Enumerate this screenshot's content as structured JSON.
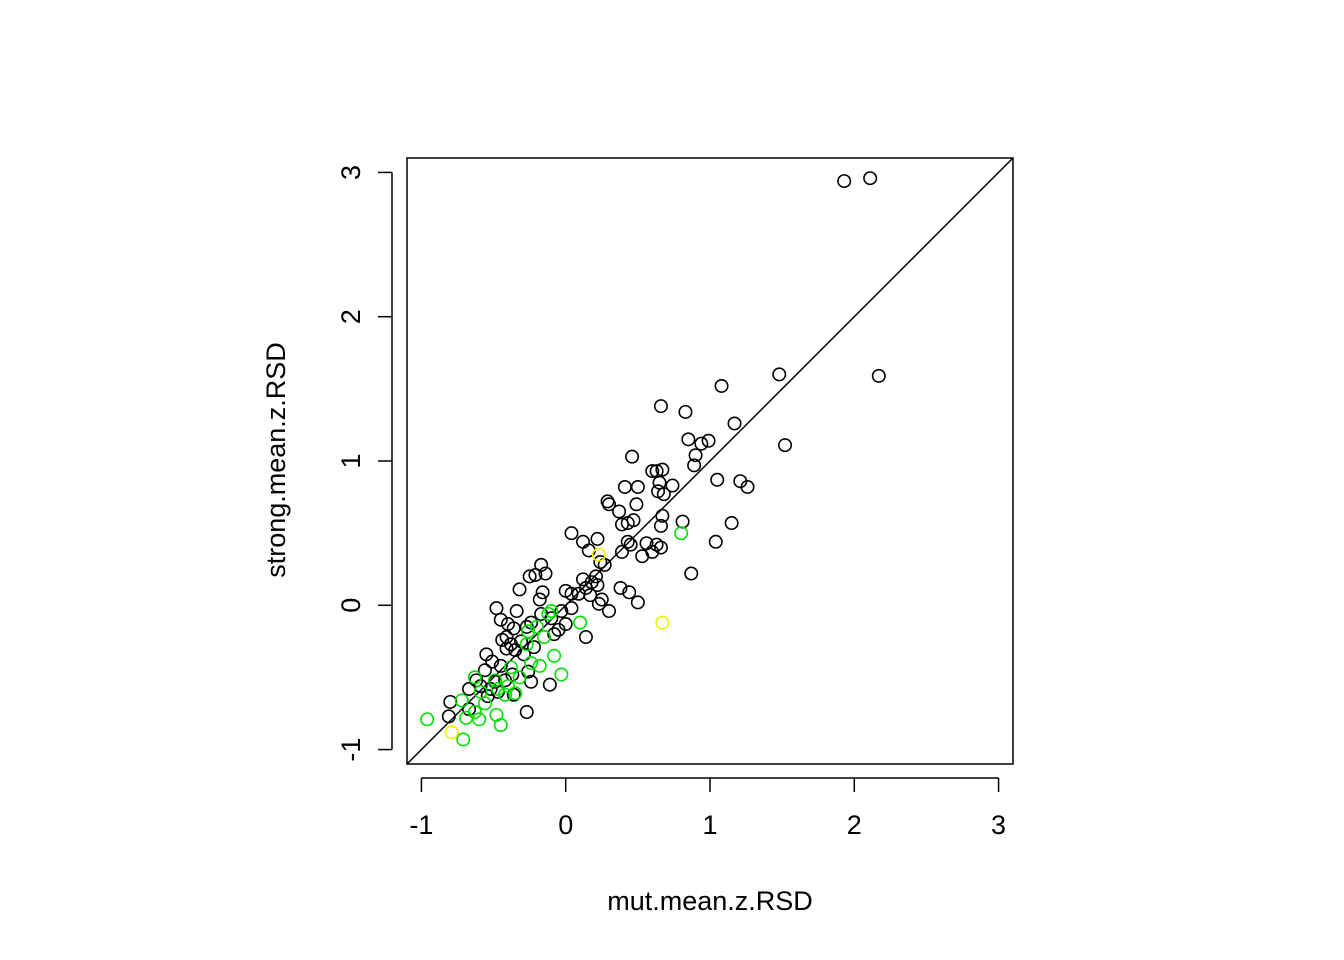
{
  "chart_data": {
    "type": "scatter",
    "xlabel": "mut.mean.z.RSD",
    "ylabel": "strong.mean.z.RSD",
    "xlim": [
      -1.1,
      3.1
    ],
    "ylim": [
      -1.1,
      3.1
    ],
    "x_ticks": [
      -1,
      0,
      1,
      2,
      3
    ],
    "y_ticks": [
      -1,
      0,
      1,
      2,
      3
    ],
    "x_tick_labels": [
      "-1",
      "0",
      "1",
      "2",
      "3"
    ],
    "y_tick_labels": [
      "-1",
      "0",
      "1",
      "2",
      "3"
    ],
    "reference_line": {
      "intercept": 0,
      "slope": 1,
      "color": "#000000"
    },
    "grid": false,
    "legend": "none",
    "series": [
      {
        "color": "#000000",
        "points": [
          [
            1.93,
            2.94
          ],
          [
            2.11,
            2.96
          ],
          [
            2.17,
            1.59
          ],
          [
            1.48,
            1.6
          ],
          [
            1.08,
            1.52
          ],
          [
            1.52,
            1.11
          ],
          [
            1.17,
            1.26
          ],
          [
            0.66,
            1.38
          ],
          [
            0.83,
            1.34
          ],
          [
            0.85,
            1.15
          ],
          [
            0.99,
            1.14
          ],
          [
            0.94,
            1.12
          ],
          [
            0.9,
            1.04
          ],
          [
            0.46,
            1.03
          ],
          [
            0.89,
            0.97
          ],
          [
            0.6,
            0.93
          ],
          [
            0.63,
            0.93
          ],
          [
            0.67,
            0.94
          ],
          [
            0.65,
            0.85
          ],
          [
            1.05,
            0.87
          ],
          [
            1.21,
            0.86
          ],
          [
            1.26,
            0.82
          ],
          [
            0.74,
            0.83
          ],
          [
            0.41,
            0.82
          ],
          [
            0.5,
            0.82
          ],
          [
            0.64,
            0.79
          ],
          [
            0.68,
            0.77
          ],
          [
            0.29,
            0.72
          ],
          [
            0.3,
            0.7
          ],
          [
            0.49,
            0.7
          ],
          [
            0.37,
            0.65
          ],
          [
            0.67,
            0.62
          ],
          [
            0.81,
            0.58
          ],
          [
            0.47,
            0.59
          ],
          [
            1.15,
            0.57
          ],
          [
            0.43,
            0.57
          ],
          [
            0.39,
            0.56
          ],
          [
            0.66,
            0.55
          ],
          [
            0.04,
            0.5
          ],
          [
            1.04,
            0.44
          ],
          [
            0.22,
            0.46
          ],
          [
            0.43,
            0.44
          ],
          [
            0.12,
            0.44
          ],
          [
            0.56,
            0.43
          ],
          [
            0.45,
            0.42
          ],
          [
            0.63,
            0.42
          ],
          [
            0.66,
            0.4
          ],
          [
            0.6,
            0.37
          ],
          [
            0.16,
            0.38
          ],
          [
            0.39,
            0.37
          ],
          [
            0.53,
            0.34
          ],
          [
            0.24,
            0.3
          ],
          [
            0.27,
            0.28
          ],
          [
            0.21,
            0.2
          ],
          [
            0.87,
            0.22
          ],
          [
            -0.17,
            0.28
          ],
          [
            -0.14,
            0.22
          ],
          [
            -0.21,
            0.21
          ],
          [
            -0.25,
            0.2
          ],
          [
            -0.32,
            0.11
          ],
          [
            0.22,
            0.14
          ],
          [
            0.12,
            0.18
          ],
          [
            0.18,
            0.16
          ],
          [
            0.14,
            0.12
          ],
          [
            0.38,
            0.12
          ],
          [
            0.44,
            0.09
          ],
          [
            0.0,
            0.1
          ],
          [
            0.04,
            0.08
          ],
          [
            0.09,
            0.08
          ],
          [
            -0.16,
            0.09
          ],
          [
            0.17,
            0.07
          ],
          [
            0.25,
            0.04
          ],
          [
            0.23,
            0.01
          ],
          [
            0.5,
            0.02
          ],
          [
            -0.18,
            0.04
          ],
          [
            0.3,
            -0.04
          ],
          [
            0.04,
            -0.02
          ],
          [
            -0.03,
            -0.04
          ],
          [
            -0.34,
            -0.04
          ],
          [
            -0.48,
            -0.02
          ],
          [
            -0.17,
            -0.06
          ],
          [
            -0.1,
            -0.09
          ],
          [
            -0.45,
            -0.1
          ],
          [
            -0.24,
            -0.12
          ],
          [
            0.0,
            -0.13
          ],
          [
            -0.4,
            -0.13
          ],
          [
            -0.27,
            -0.15
          ],
          [
            -0.36,
            -0.16
          ],
          [
            -0.05,
            -0.17
          ],
          [
            0.14,
            -0.22
          ],
          [
            -0.08,
            -0.2
          ],
          [
            -0.41,
            -0.22
          ],
          [
            -0.44,
            -0.24
          ],
          [
            -0.31,
            -0.25
          ],
          [
            -0.38,
            -0.27
          ],
          [
            -0.22,
            -0.29
          ],
          [
            -0.41,
            -0.3
          ],
          [
            -0.35,
            -0.31
          ],
          [
            -0.29,
            -0.34
          ],
          [
            -0.55,
            -0.34
          ],
          [
            -0.51,
            -0.39
          ],
          [
            -0.45,
            -0.42
          ],
          [
            -0.56,
            -0.45
          ],
          [
            -0.26,
            -0.46
          ],
          [
            -0.37,
            -0.48
          ],
          [
            -0.42,
            -0.52
          ],
          [
            -0.49,
            -0.53
          ],
          [
            -0.59,
            -0.56
          ],
          [
            -0.67,
            -0.58
          ],
          [
            -0.24,
            -0.53
          ],
          [
            -0.11,
            -0.55
          ],
          [
            -0.47,
            -0.6
          ],
          [
            -0.54,
            -0.63
          ],
          [
            -0.8,
            -0.67
          ],
          [
            -0.67,
            -0.72
          ],
          [
            -0.27,
            -0.74
          ],
          [
            -0.81,
            -0.77
          ],
          [
            -0.36,
            -0.62
          ],
          [
            -0.52,
            -0.58
          ],
          [
            -0.62,
            -0.52
          ]
        ]
      },
      {
        "color": "#00e000",
        "points": [
          [
            0.8,
            0.5
          ],
          [
            -0.1,
            -0.04
          ],
          [
            -0.12,
            -0.06
          ],
          [
            -0.2,
            -0.15
          ],
          [
            0.1,
            -0.12
          ],
          [
            -0.26,
            -0.18
          ],
          [
            -0.15,
            -0.22
          ],
          [
            -0.27,
            -0.27
          ],
          [
            -0.08,
            -0.35
          ],
          [
            -0.24,
            -0.4
          ],
          [
            -0.18,
            -0.42
          ],
          [
            -0.38,
            -0.43
          ],
          [
            -0.03,
            -0.48
          ],
          [
            -0.32,
            -0.5
          ],
          [
            -0.63,
            -0.5
          ],
          [
            -0.49,
            -0.52
          ],
          [
            -0.4,
            -0.56
          ],
          [
            -0.47,
            -0.58
          ],
          [
            -0.59,
            -0.6
          ],
          [
            -0.35,
            -0.61
          ],
          [
            -0.72,
            -0.66
          ],
          [
            -0.63,
            -0.74
          ],
          [
            -0.69,
            -0.78
          ],
          [
            -0.48,
            -0.76
          ],
          [
            -0.6,
            -0.79
          ],
          [
            -0.96,
            -0.79
          ],
          [
            -0.45,
            -0.83
          ],
          [
            -0.71,
            -0.93
          ],
          [
            -0.56,
            -0.68
          ],
          [
            -0.42,
            -0.62
          ]
        ]
      },
      {
        "color": "#f0f000",
        "points": [
          [
            0.67,
            -0.12
          ],
          [
            0.23,
            0.35
          ],
          [
            -0.79,
            -0.88
          ]
        ]
      }
    ]
  }
}
